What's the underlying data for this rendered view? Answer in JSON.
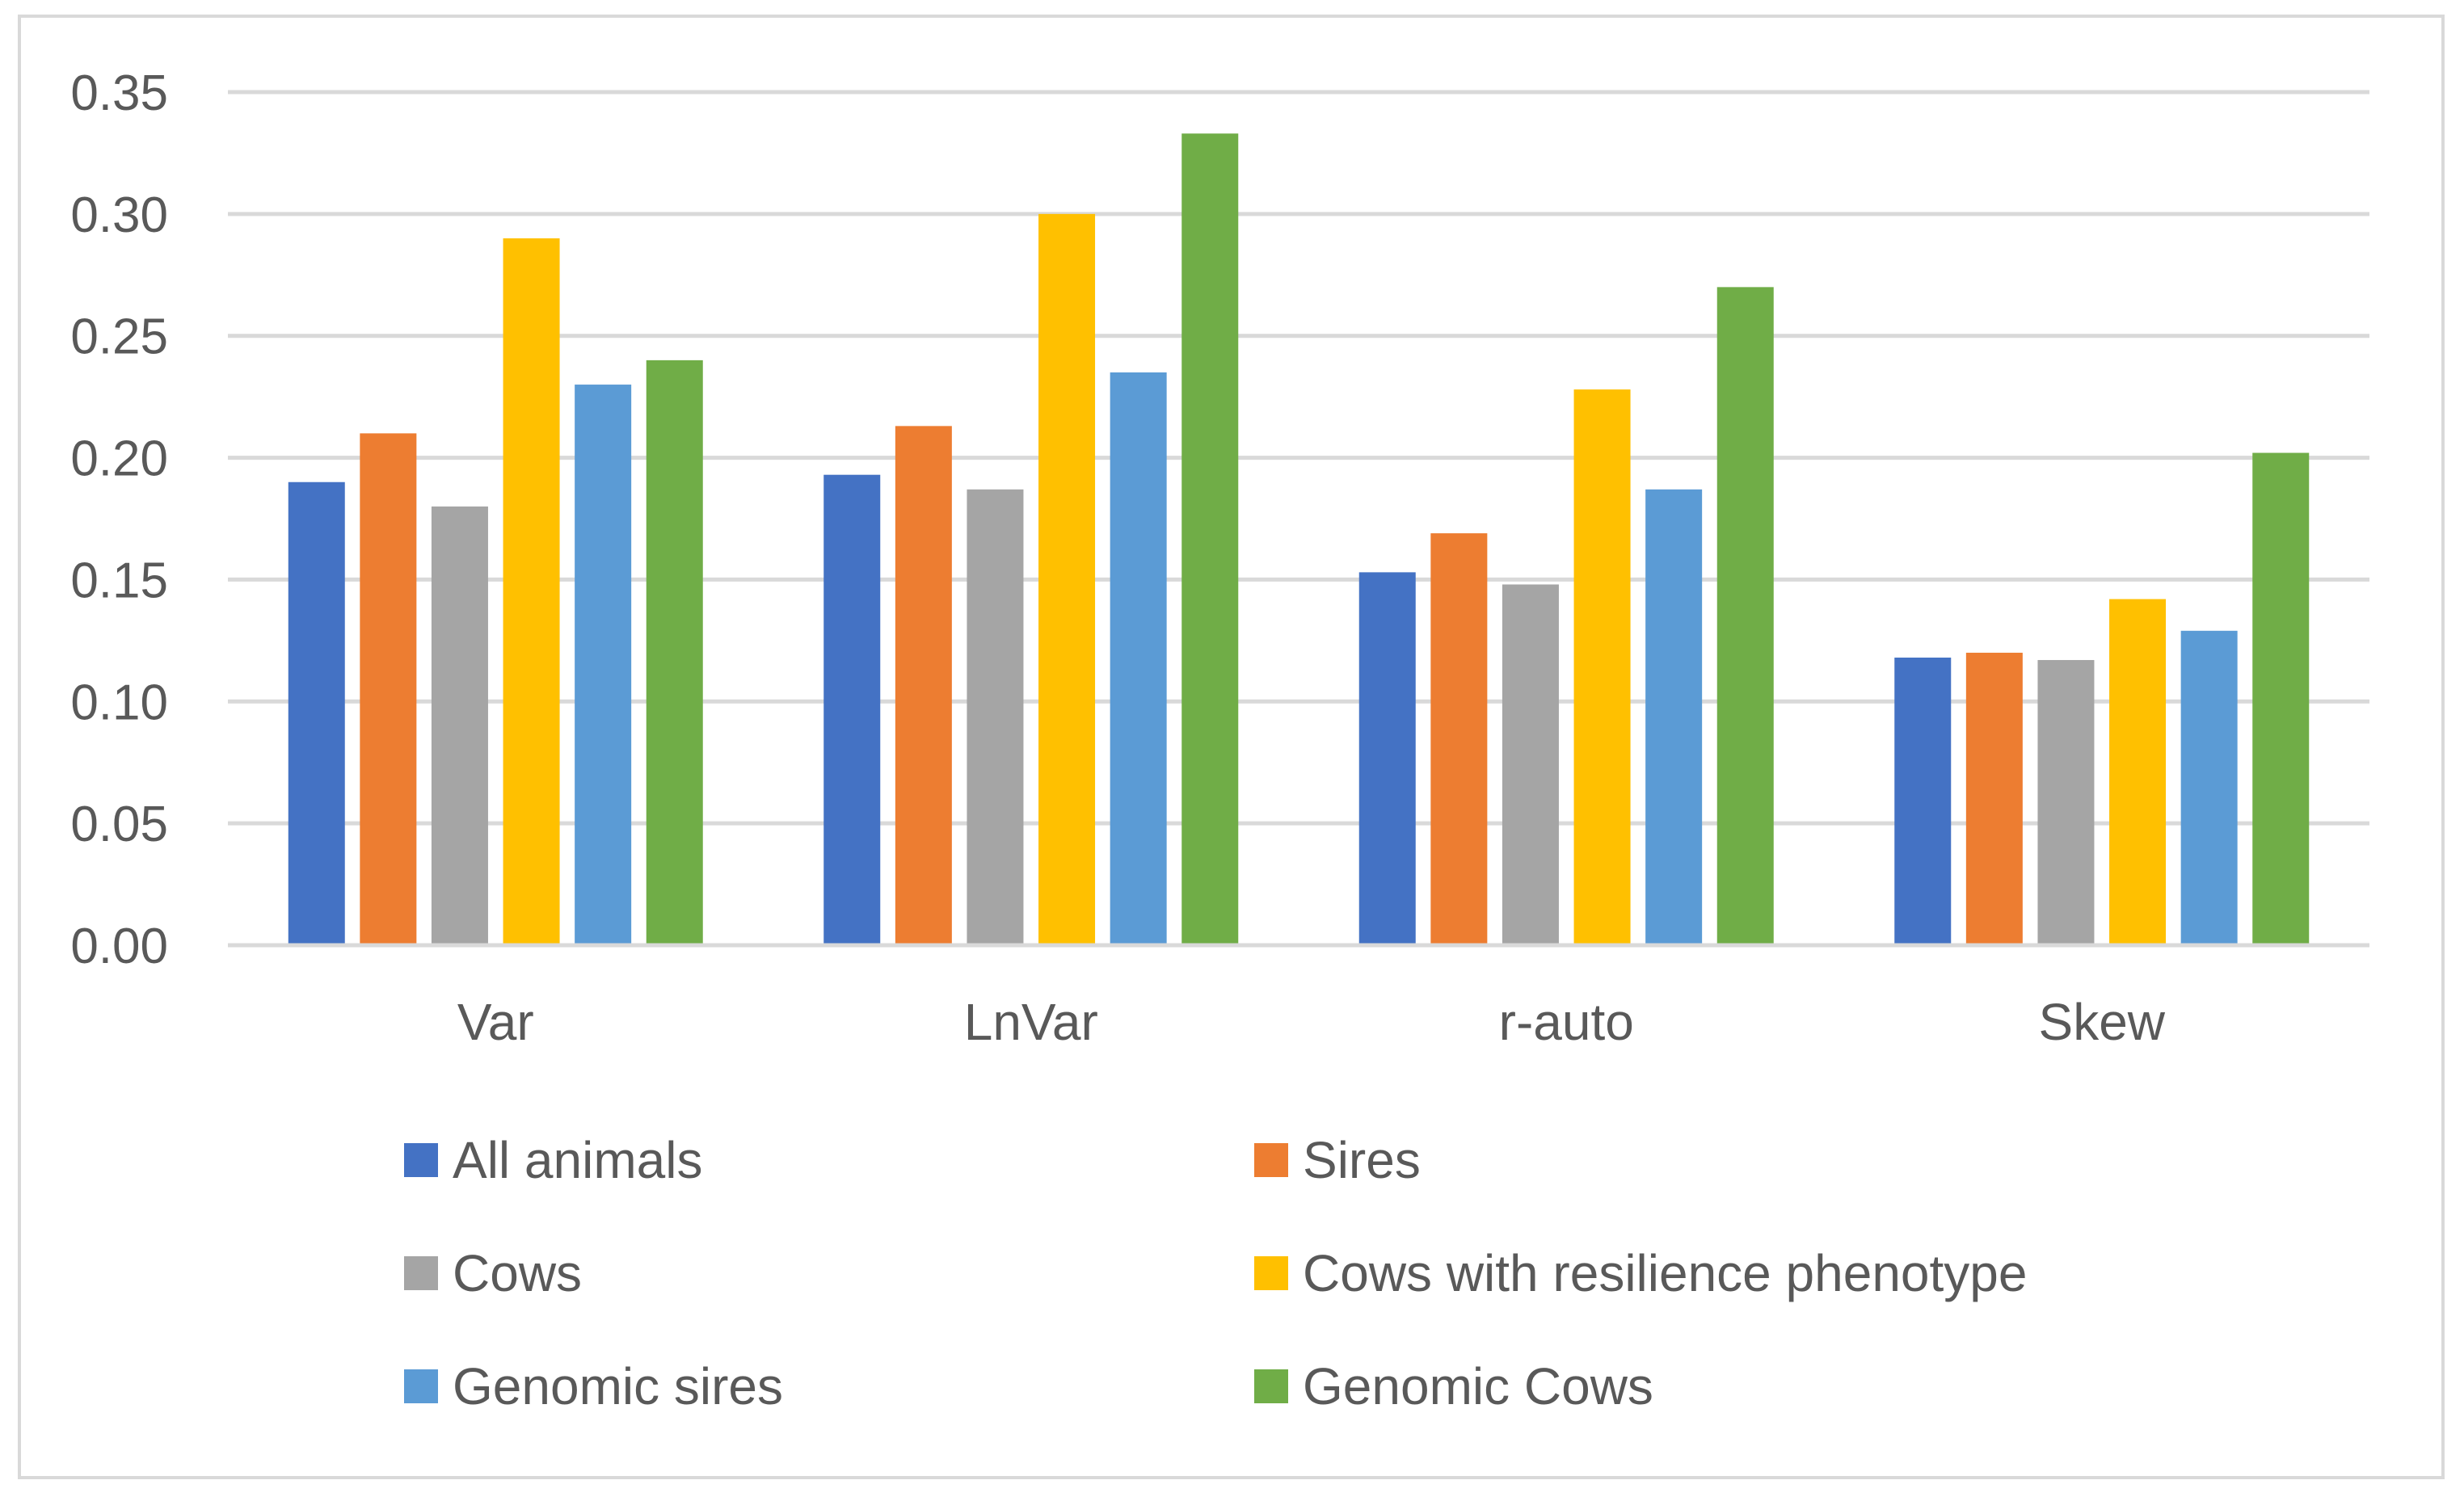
{
  "chart_data": {
    "type": "bar",
    "title": "",
    "xlabel": "",
    "ylabel": "",
    "ylim": [
      0,
      0.35
    ],
    "yticks": [
      "0.00",
      "0.05",
      "0.10",
      "0.15",
      "0.20",
      "0.25",
      "0.30",
      "0.35"
    ],
    "ytick_values": [
      0,
      0.05,
      0.1,
      0.15,
      0.2,
      0.25,
      0.3,
      0.35
    ],
    "grid": true,
    "legend_position": "bottom",
    "categories": [
      "Var",
      "LnVar",
      "r-auto",
      "Skew"
    ],
    "series": [
      {
        "name": "All animals",
        "color": "#4472C4",
        "values": [
          0.19,
          0.193,
          0.153,
          0.118
        ]
      },
      {
        "name": "Sires",
        "color": "#ED7D31",
        "values": [
          0.21,
          0.213,
          0.169,
          0.12
        ]
      },
      {
        "name": "Cows",
        "color": "#A5A5A5",
        "values": [
          0.18,
          0.187,
          0.148,
          0.117
        ]
      },
      {
        "name": "Cows with resilience phenotype",
        "color": "#FFC000",
        "values": [
          0.29,
          0.3,
          0.228,
          0.142
        ]
      },
      {
        "name": "Genomic sires",
        "color": "#5B9BD5",
        "values": [
          0.23,
          0.235,
          0.187,
          0.129
        ]
      },
      {
        "name": "Genomic Cows",
        "color": "#70AD47",
        "values": [
          0.24,
          0.333,
          0.27,
          0.202
        ]
      }
    ]
  }
}
